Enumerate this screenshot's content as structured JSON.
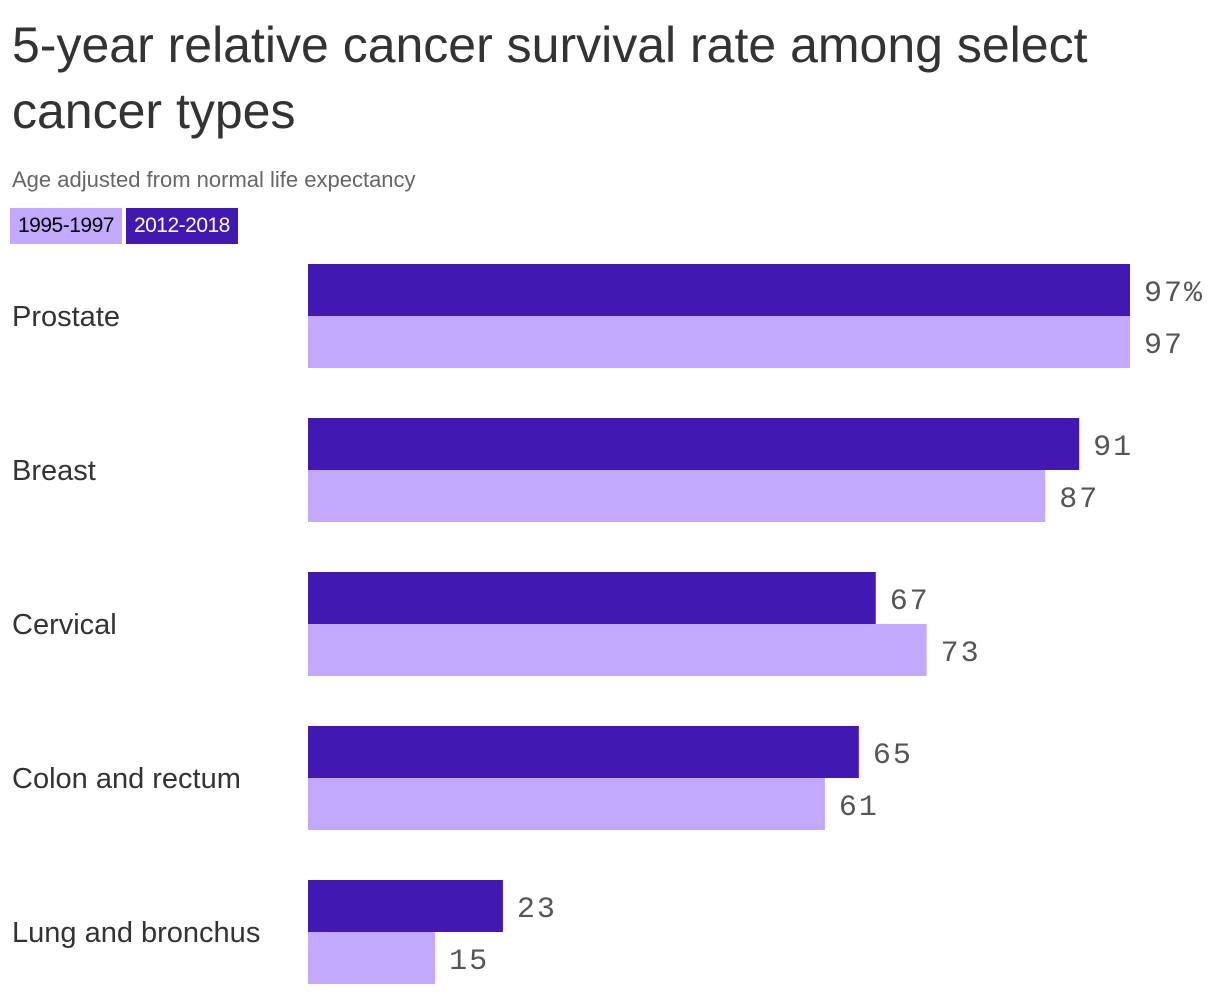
{
  "title": "5-year relative cancer survival rate among select cancer types",
  "subtitle": "Age adjusted from normal life expectancy",
  "colors": {
    "series_old": "#c2a9fd",
    "series_new": "#4119b2",
    "old_text": "#000000",
    "new_text": "#ffffff"
  },
  "legend": [
    {
      "label": "1995-1997",
      "color": "#c2a9fd",
      "text_color": "#000000"
    },
    {
      "label": "2012-2018",
      "color": "#4119b2",
      "text_color": "#ffffff"
    }
  ],
  "chart_data": {
    "type": "bar",
    "orientation": "horizontal",
    "title": "5-year relative cancer survival rate among select cancer types",
    "subtitle": "Age adjusted from normal life expectancy",
    "categories": [
      "Prostate",
      "Breast",
      "Cervical",
      "Colon and rectum",
      "Lung and bronchus"
    ],
    "series": [
      {
        "name": "2012-2018",
        "color": "#4119b2",
        "values": [
          97,
          91,
          67,
          65,
          23
        ]
      },
      {
        "name": "1995-1997",
        "color": "#c2a9fd",
        "values": [
          97,
          87,
          73,
          61,
          15
        ]
      }
    ],
    "value_labels": {
      "2012-2018": [
        "97%",
        "91",
        "67",
        "65",
        "23"
      ],
      "1995-1997": [
        "97",
        "87",
        "73",
        "61",
        "15"
      ]
    },
    "xlim": [
      0,
      97
    ],
    "grid": false,
    "legend_position": "top-left"
  }
}
